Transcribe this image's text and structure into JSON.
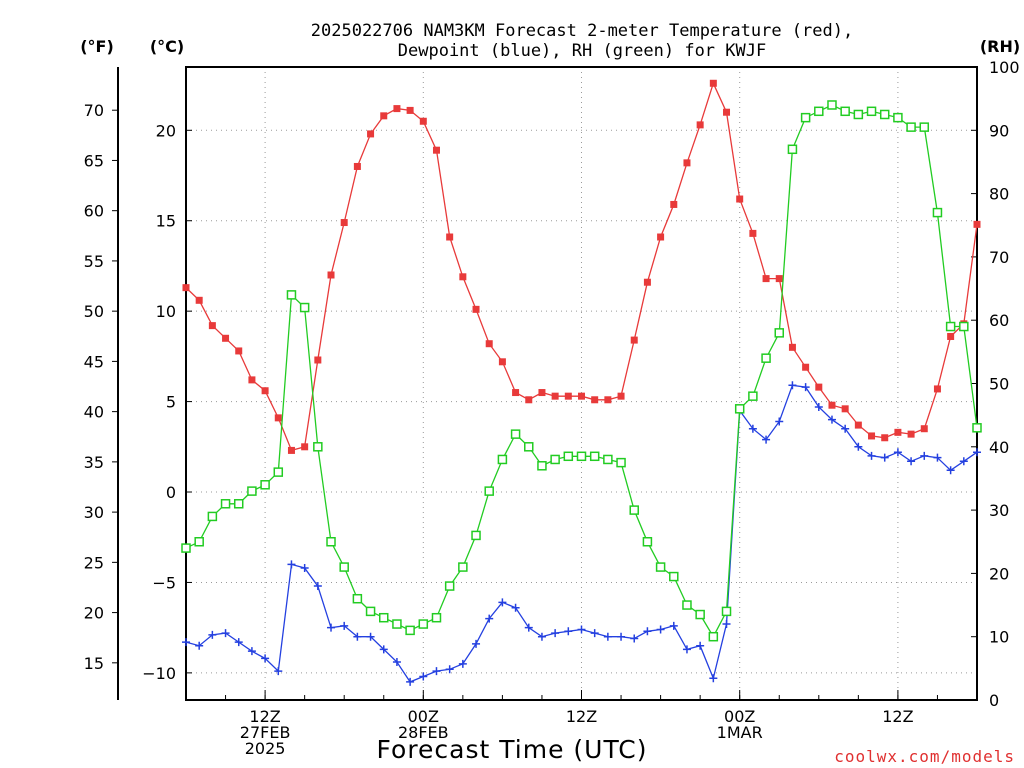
{
  "chart_data": {
    "type": "line",
    "title_lines": [
      "2025022706 NAM3KM Forecast 2-meter Temperature (red),",
      "Dewpoint (blue), RH (green) for KWJF"
    ],
    "xlabel": "Forecast Time (UTC)",
    "credit": "coolwx.com/models",
    "units": {
      "left_f": "(°F)",
      "left_c": "(°C)",
      "right": "(RH)"
    },
    "x_hours_from_06z_27feb": [
      0,
      60
    ],
    "x_ticks": [
      {
        "hour": 6,
        "lines": [
          "12Z",
          "27FEB",
          "2025"
        ]
      },
      {
        "hour": 18,
        "lines": [
          "00Z",
          "28FEB"
        ]
      },
      {
        "hour": 30,
        "lines": [
          "12Z"
        ]
      },
      {
        "hour": 42,
        "lines": [
          "00Z",
          "1MAR"
        ]
      },
      {
        "hour": 54,
        "lines": [
          "12Z"
        ]
      }
    ],
    "celsius_axis": {
      "range": [
        -11.5,
        23.5
      ],
      "ticks": [
        -10,
        -5,
        0,
        5,
        10,
        15,
        20
      ]
    },
    "fahrenheit_axis": {
      "ticks": [
        15,
        20,
        25,
        30,
        35,
        40,
        45,
        50,
        55,
        60,
        65,
        70
      ]
    },
    "rh_axis": {
      "range": [
        0,
        100
      ],
      "ticks": [
        0,
        10,
        20,
        30,
        40,
        50,
        60,
        70,
        80,
        90,
        100
      ]
    },
    "grid": true,
    "series": [
      {
        "name": "Temperature",
        "axis": "celsius",
        "color": "#e83a3a",
        "marker": "filled-square",
        "values": [
          11.3,
          10.6,
          9.2,
          8.5,
          7.8,
          6.2,
          5.6,
          4.1,
          2.3,
          2.5,
          7.3,
          12.0,
          14.9,
          18.0,
          19.8,
          20.8,
          21.2,
          21.1,
          20.5,
          18.9,
          14.1,
          11.9,
          10.1,
          8.2,
          7.2,
          5.5,
          5.1,
          5.5,
          5.3,
          5.3,
          5.3,
          5.1,
          5.1,
          5.3,
          8.4,
          11.6,
          14.1,
          15.9,
          18.2,
          20.3,
          22.6,
          21.0,
          16.2,
          14.3,
          11.8,
          11.8,
          8.0,
          6.9,
          5.8,
          4.8,
          4.6,
          3.7,
          3.1,
          3.0,
          3.3,
          3.2,
          3.5,
          5.7,
          8.6,
          9.3,
          14.8
        ]
      },
      {
        "name": "Dewpoint",
        "axis": "celsius",
        "color": "#2440e0",
        "marker": "plus",
        "values": [
          -8.3,
          -8.5,
          -7.9,
          -7.8,
          -8.3,
          -8.8,
          -9.2,
          -9.9,
          -4.0,
          -4.2,
          -5.2,
          -7.5,
          -7.4,
          -8.0,
          -8.0,
          -8.7,
          -9.4,
          -10.5,
          -10.2,
          -9.9,
          -9.8,
          -9.5,
          -8.4,
          -7.0,
          -6.1,
          -6.4,
          -7.5,
          -8.0,
          -7.8,
          -7.7,
          -7.6,
          -7.8,
          -8.0,
          -8.0,
          -8.1,
          -7.7,
          -7.6,
          -7.4,
          -8.7,
          -8.5,
          -10.3,
          -7.3,
          4.5,
          3.5,
          2.9,
          3.9,
          5.9,
          5.8,
          4.7,
          4.0,
          3.5,
          2.5,
          2.0,
          1.9,
          2.2,
          1.7,
          2.0,
          1.9,
          1.2,
          1.7,
          2.2
        ]
      },
      {
        "name": "RH",
        "axis": "rh",
        "color": "#22cc22",
        "marker": "open-square",
        "values": [
          24,
          25,
          29,
          31,
          31,
          33,
          34,
          36,
          64,
          62,
          40,
          25,
          21,
          16,
          14,
          13,
          12,
          11,
          12,
          13,
          18,
          21,
          26,
          33,
          38,
          42,
          40,
          37,
          38,
          38.5,
          38.5,
          38.5,
          38,
          37.5,
          30,
          25,
          21,
          19.5,
          15,
          13.5,
          10,
          14,
          46,
          48,
          54,
          58,
          87,
          92,
          93,
          94,
          93,
          92.5,
          93,
          92.5,
          92,
          90.5,
          90.5,
          77,
          59,
          59,
          43
        ]
      }
    ]
  }
}
